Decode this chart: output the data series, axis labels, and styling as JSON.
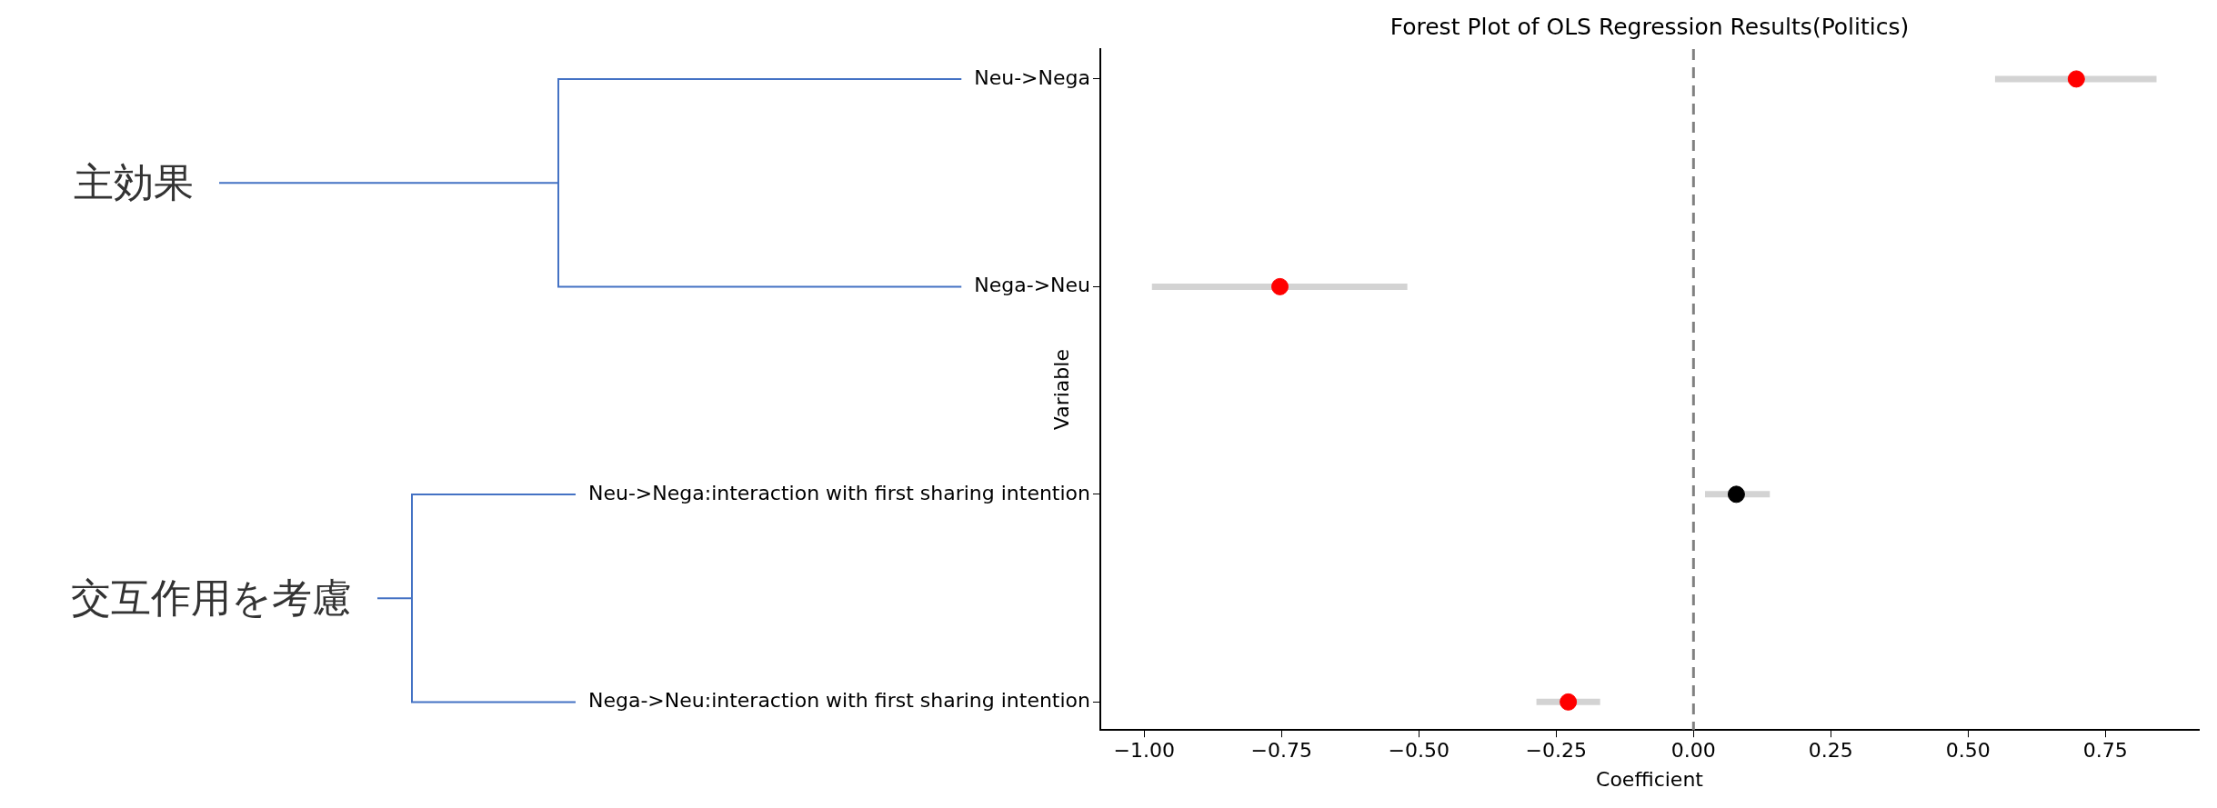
{
  "chart_data": {
    "type": "scatter",
    "orientation": "horizontal",
    "title": "Forest Plot of OLS Regression Results(Politics)",
    "xlabel": "Coefficient",
    "ylabel": "Variable",
    "categories": [
      "Neu->Nega",
      "Nega->Neu",
      "Neu->Nega:interaction with first sharing intention",
      "Nega->Neu:interaction with first sharing intention"
    ],
    "values": [
      0.697,
      -0.753,
      0.078,
      -0.228
    ],
    "colors": [
      "#ff0000",
      "#ff0000",
      "#000000",
      "#ff0000"
    ],
    "errors": [
      [
        0.549,
        0.843
      ],
      [
        -0.986,
        -0.521
      ],
      [
        0.021,
        0.139
      ],
      [
        -0.286,
        -0.17
      ]
    ],
    "xlim": [
      -1.08,
      0.92
    ],
    "xticks": [
      {
        "value": -1,
        "label": "−1.00"
      },
      {
        "value": -0.75,
        "label": "−0.75"
      },
      {
        "value": -0.5,
        "label": "−0.50"
      },
      {
        "value": -0.25,
        "label": "−0.25"
      },
      {
        "value": 0,
        "label": "0.00"
      },
      {
        "value": 0.25,
        "label": "0.25"
      },
      {
        "value": 0.5,
        "label": "0.50"
      },
      {
        "value": 0.75,
        "label": "0.75"
      }
    ],
    "ref_lines": [
      {
        "axis": "x",
        "value": 0,
        "color": "#808080",
        "line_style": "dashed"
      }
    ],
    "marker": "circle",
    "grid": false,
    "legend": false,
    "annotations": [
      "主効果",
      "交互作用を考慮"
    ]
  }
}
